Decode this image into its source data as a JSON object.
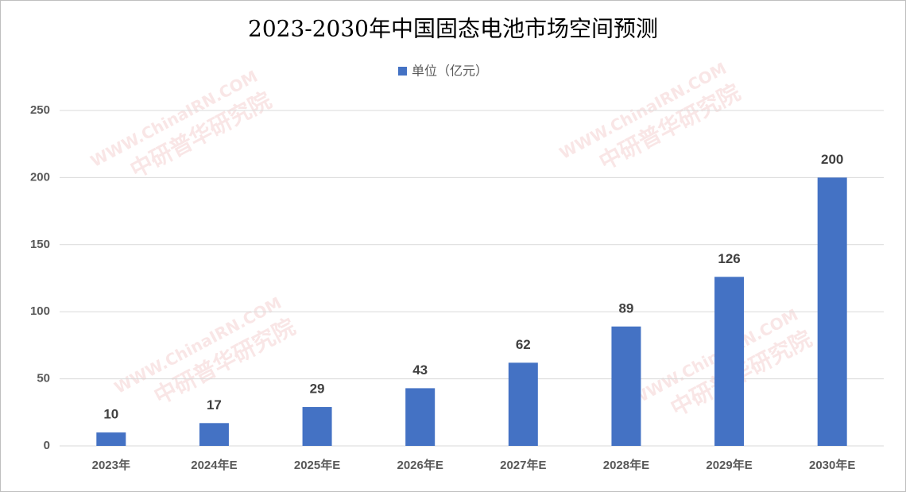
{
  "chart_data": {
    "type": "bar",
    "title": "2023-2030年中国固态电池市场空间预测",
    "watermark": [
      "WWW.ChinaIRN.COM",
      "中研普华研究院"
    ],
    "categories": [
      "2023年",
      "2024年E",
      "2025年E",
      "2026年E",
      "2027年E",
      "2028年E",
      "2029年E",
      "2030年E"
    ],
    "series": [
      {
        "name": "单位（亿元）",
        "color": "#4472c4",
        "values": [
          10,
          17,
          29,
          43,
          62,
          89,
          126,
          200
        ]
      }
    ],
    "ylim": [
      0,
      250
    ],
    "yticks": [
      0,
      50,
      100,
      150,
      200,
      250
    ],
    "grid": true
  }
}
